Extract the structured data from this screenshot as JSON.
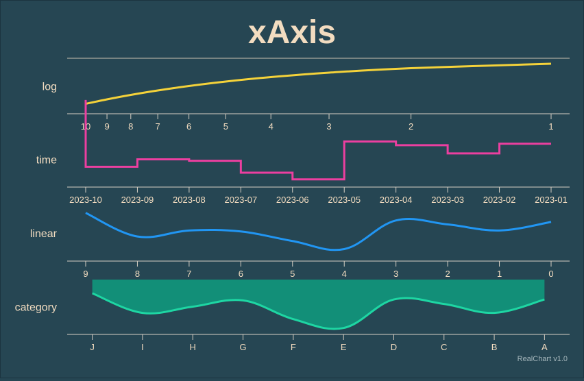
{
  "title": "xAxis",
  "credits": "RealChart v1.0",
  "colors": {
    "background": "#264653",
    "text": "#f2dcc0",
    "log": "#f4d23a",
    "time": "#ec3fa0",
    "linear": "#2196f3",
    "category_line": "#1ed6a3",
    "category_fill": "#128f78"
  },
  "chart_data": [
    {
      "type": "line",
      "axis_label": "log",
      "x_axis_type": "log",
      "x_reversed": true,
      "x_ticks": [
        "10",
        "9",
        "8",
        "7",
        "6",
        "5",
        "4",
        "3",
        "2",
        "1"
      ],
      "x": [
        10,
        9,
        8,
        7,
        6,
        5,
        4,
        3,
        2,
        1
      ],
      "values": [
        1,
        2,
        3,
        4,
        5,
        6,
        7,
        8,
        9,
        10
      ],
      "ylim": [
        0,
        10
      ],
      "smooth": true
    },
    {
      "type": "line",
      "axis_label": "time",
      "x_axis_type": "time",
      "step": true,
      "x_ticks": [
        "2023-10",
        "2023-09",
        "2023-08",
        "2023-07",
        "2023-06",
        "2023-05",
        "2023-04",
        "2023-03",
        "2023-02",
        "2023-01"
      ],
      "values": [
        10,
        1,
        2,
        1.8,
        0.2,
        -0.7,
        4.4,
        3.9,
        2.8,
        4.1
      ],
      "ylim": [
        -1,
        5
      ]
    },
    {
      "type": "line",
      "axis_label": "linear",
      "x_axis_type": "linear",
      "x_ticks": [
        "9",
        "8",
        "7",
        "6",
        "5",
        "4",
        "3",
        "2",
        "1",
        "0"
      ],
      "x": [
        9,
        8,
        7,
        6,
        5,
        4,
        3,
        2,
        1,
        0
      ],
      "values": [
        8.5,
        3.8,
        5.0,
        4.8,
        2.9,
        1.3,
        7.0,
        6.2,
        5.0,
        6.7
      ],
      "ylim": [
        0,
        9
      ],
      "smooth": true
    },
    {
      "type": "area",
      "axis_label": "category",
      "x_axis_type": "category",
      "categories": [
        "J",
        "I",
        "H",
        "G",
        "F",
        "E",
        "D",
        "C",
        "B",
        "A"
      ],
      "values": [
        8.0,
        3.6,
        5.0,
        6.4,
        2.2,
        0.2,
        6.6,
        5.6,
        3.6,
        6.6
      ],
      "ylim": [
        0,
        10
      ],
      "smooth": true
    }
  ]
}
